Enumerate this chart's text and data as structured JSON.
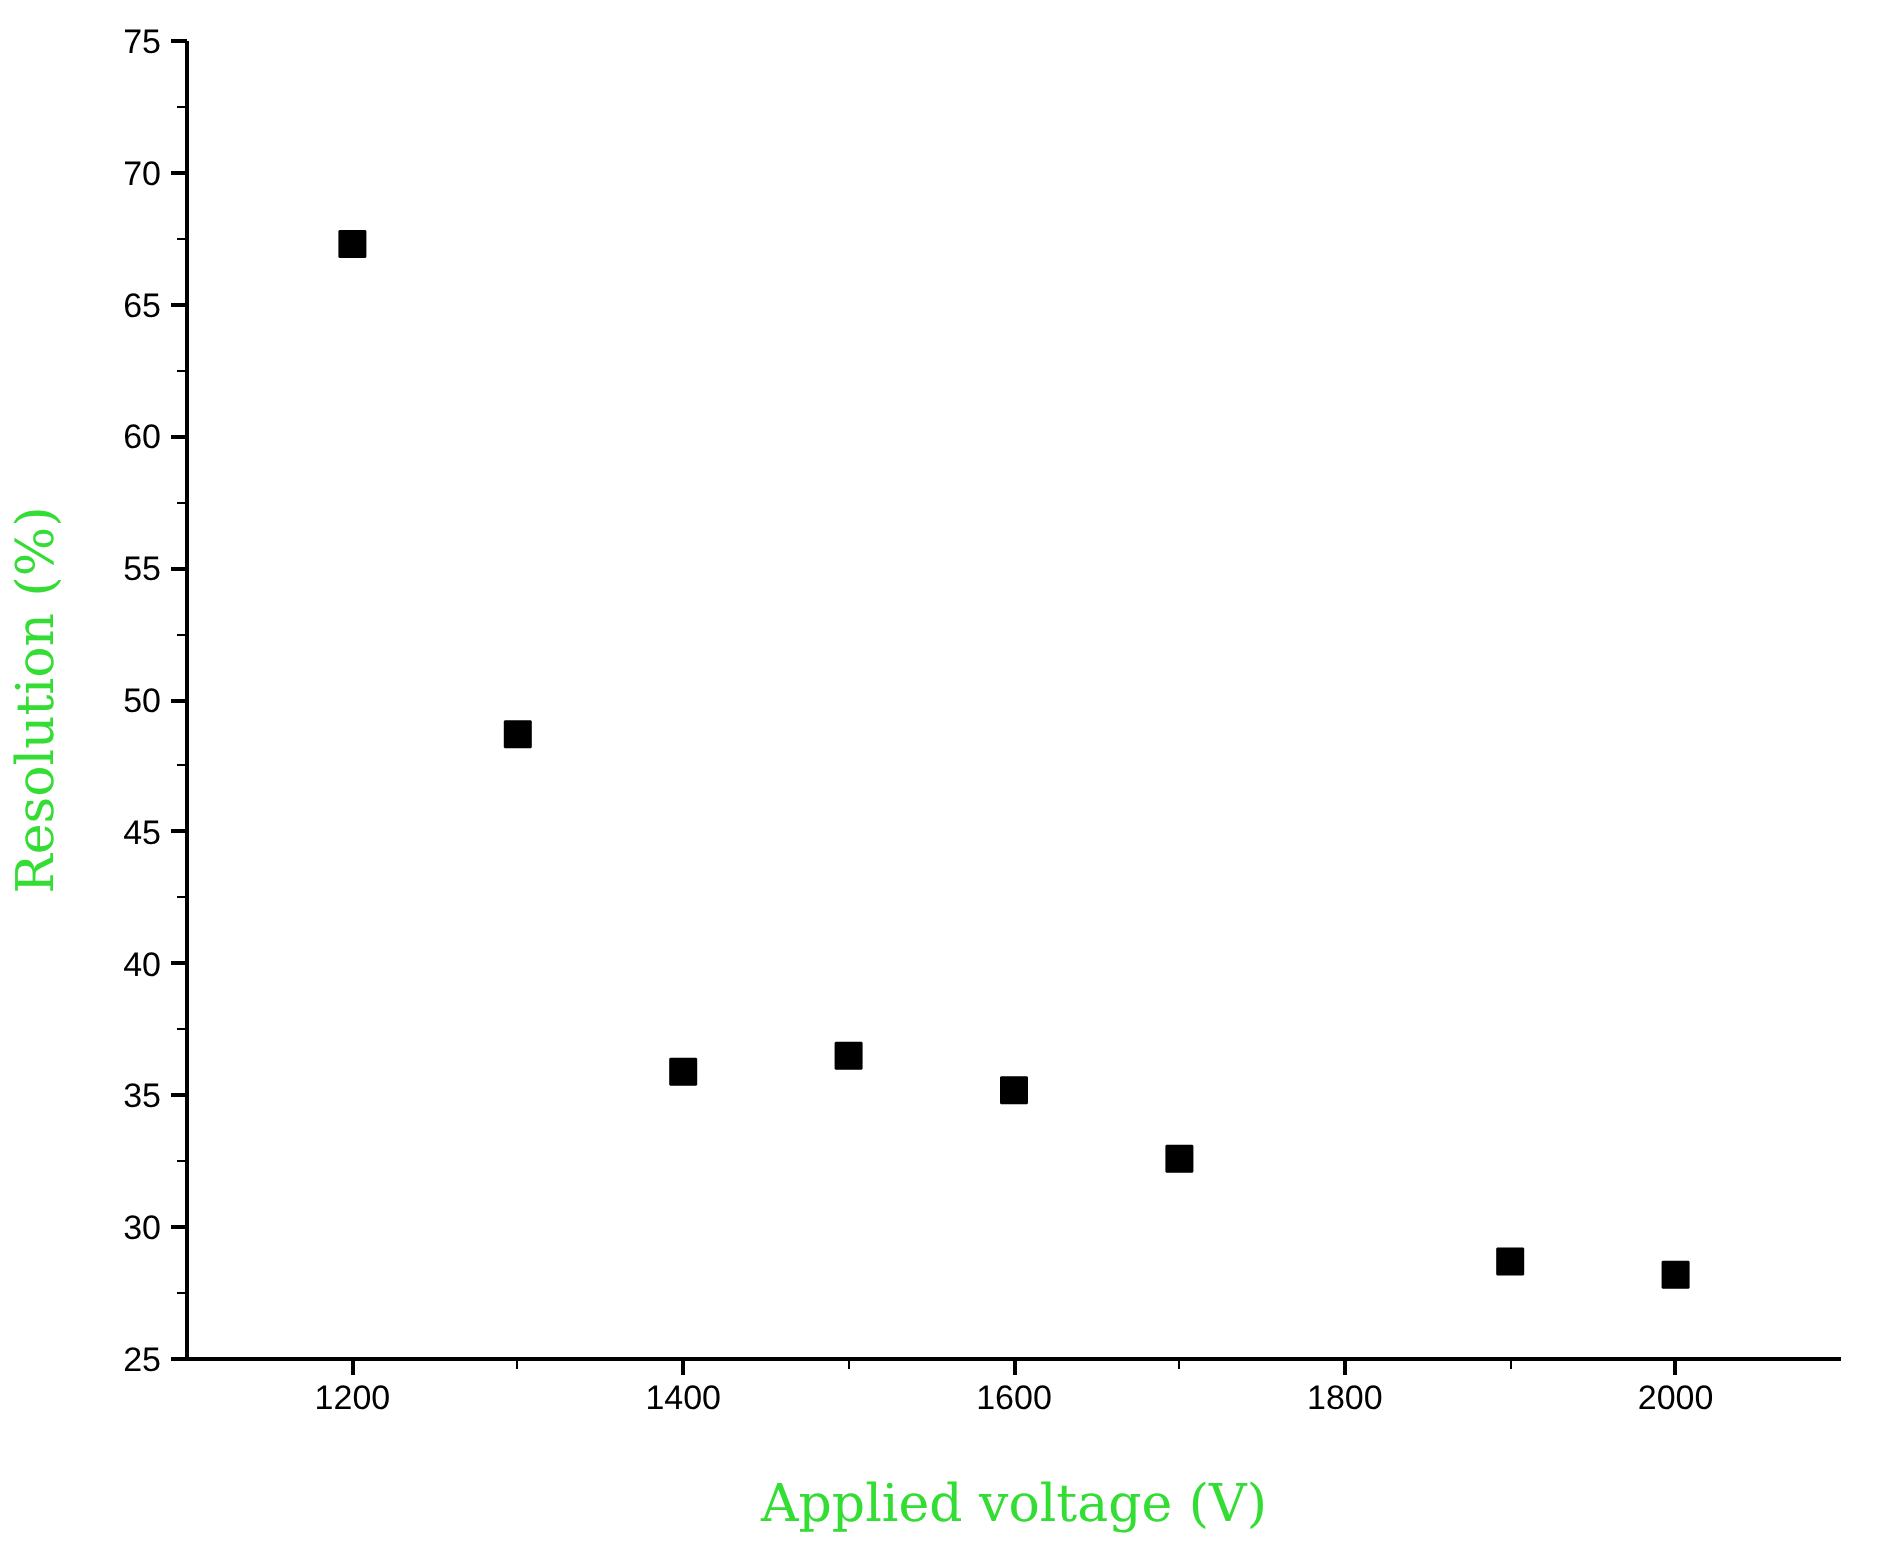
{
  "chart_data": {
    "type": "scatter",
    "xlabel": "Applied voltage (V)",
    "ylabel": "Resolution (%)",
    "x": [
      1200,
      1300,
      1400,
      1500,
      1600,
      1700,
      1900,
      2000
    ],
    "series": [
      {
        "color": "#000000",
        "values": [
          67.3,
          48.7,
          35.9,
          36.5,
          35.2,
          32.6,
          28.7,
          28.2
        ]
      }
    ],
    "marker": "square",
    "grid": false,
    "xlim": [
      1100,
      2100
    ],
    "xticks": [
      1200,
      1400,
      1600,
      1800,
      2000
    ],
    "ylim": [
      25,
      75
    ],
    "yticks": [
      25,
      30,
      35,
      40,
      45,
      50,
      55,
      60,
      65,
      70,
      75
    ]
  }
}
